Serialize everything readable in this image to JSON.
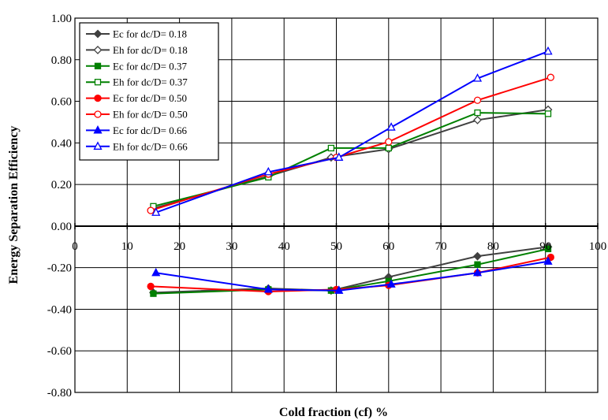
{
  "chart_data": {
    "type": "line",
    "xlabel": "Cold fraction (cf) %",
    "ylabel": "Energy Separation Efficiency",
    "xlim": [
      0,
      100
    ],
    "ylim": [
      -0.8,
      1.0
    ],
    "x_ticks": [
      "0",
      "10",
      "20",
      "30",
      "40",
      "50",
      "60",
      "70",
      "80",
      "90",
      "100"
    ],
    "y_ticks": [
      "1.00",
      "0.80",
      "0.60",
      "0.40",
      "0.20",
      "0.00",
      "-0.20",
      "-0.40",
      "-0.60",
      "-0.80"
    ],
    "grid": true,
    "legend_position": "top-left",
    "series": [
      {
        "name": "Ec for dc/D= 0.18",
        "color": "#404040",
        "marker": "diamond-filled",
        "x": [
          15,
          37,
          49,
          60,
          77,
          90.5
        ],
        "y": [
          -0.32,
          -0.3,
          -0.31,
          -0.245,
          -0.145,
          -0.1
        ]
      },
      {
        "name": "Eh for dc/D= 0.18",
        "color": "#404040",
        "marker": "diamond-open",
        "x": [
          15,
          37,
          49,
          60,
          77,
          90.5
        ],
        "y": [
          0.085,
          0.24,
          0.33,
          0.37,
          0.51,
          0.56
        ]
      },
      {
        "name": "Ec for dc/D= 0.37",
        "color": "#008000",
        "marker": "square-filled",
        "x": [
          15,
          37,
          49,
          60,
          77,
          90.5
        ],
        "y": [
          -0.325,
          -0.305,
          -0.31,
          -0.265,
          -0.185,
          -0.11
        ]
      },
      {
        "name": "Eh for dc/D= 0.37",
        "color": "#008000",
        "marker": "square-open",
        "x": [
          15,
          37,
          49,
          60,
          77,
          90.5
        ],
        "y": [
          0.095,
          0.235,
          0.375,
          0.375,
          0.545,
          0.54
        ]
      },
      {
        "name": "Ec for dc/D= 0.50",
        "color": "#ff0000",
        "marker": "circle-filled",
        "x": [
          14.5,
          37,
          50,
          60,
          77,
          91
        ],
        "y": [
          -0.29,
          -0.315,
          -0.305,
          -0.285,
          -0.225,
          -0.15
        ]
      },
      {
        "name": "Eh for dc/D= 0.50",
        "color": "#ff0000",
        "marker": "circle-open",
        "x": [
          14.5,
          37,
          50,
          60,
          77,
          91
        ],
        "y": [
          0.075,
          0.25,
          0.33,
          0.405,
          0.605,
          0.715
        ]
      },
      {
        "name": "Ec for dc/D= 0.66",
        "color": "#0000ff",
        "marker": "triangle-filled",
        "x": [
          15.5,
          37,
          50.5,
          60.5,
          77,
          90.5
        ],
        "y": [
          -0.225,
          -0.305,
          -0.31,
          -0.28,
          -0.225,
          -0.17
        ]
      },
      {
        "name": "Eh for dc/D= 0.66",
        "color": "#0000ff",
        "marker": "triangle-open",
        "x": [
          15.5,
          37,
          50.5,
          60.5,
          77,
          90.5
        ],
        "y": [
          0.065,
          0.26,
          0.33,
          0.475,
          0.71,
          0.84
        ]
      }
    ]
  }
}
